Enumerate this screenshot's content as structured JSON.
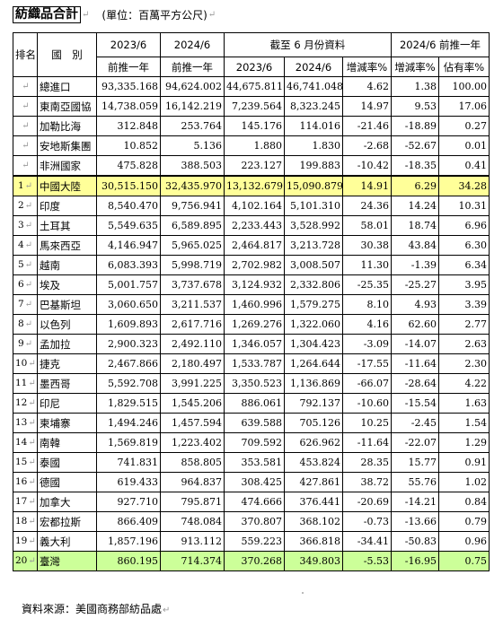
{
  "title": "紡織品合計",
  "unit": "(單位：百萬平方公尺)",
  "header": {
    "rank": "排名",
    "country": "國　別",
    "col_2023": "2023/6",
    "col_2024": "2024/6",
    "prev_year": "前推一年",
    "ytd_group": "截至 6 月份資料",
    "ytd_2023": "2023/6",
    "ytd_2024": "2024/6",
    "ytd_change": "增減率%",
    "prior_group": "2024/6 前推一年",
    "prior_change": "增減率%",
    "prior_share": "佔有率%"
  },
  "rows": [
    {
      "rank": "",
      "name": "總進口",
      "v1": "93,335.168",
      "v2": "94,624.002",
      "v3": "44,675.811",
      "v4": "46,741.048",
      "v5": "4.62",
      "v6": "1.38",
      "v7": "100.00"
    },
    {
      "rank": "",
      "name": "東南亞國協",
      "v1": "14,738.059",
      "v2": "16,142.219",
      "v3": "7,239.564",
      "v4": "8,323.245",
      "v5": "14.97",
      "v6": "9.53",
      "v7": "17.06"
    },
    {
      "rank": "",
      "name": "加勒比海",
      "v1": "312.848",
      "v2": "253.764",
      "v3": "145.176",
      "v4": "114.016",
      "v5": "-21.46",
      "v6": "-18.89",
      "v7": "0.27"
    },
    {
      "rank": "",
      "name": "安地斯集團",
      "v1": "10.852",
      "v2": "5.136",
      "v3": "1.880",
      "v4": "1.830",
      "v5": "-2.68",
      "v6": "-52.67",
      "v7": "0.01"
    },
    {
      "rank": "",
      "name": "非洲國家",
      "v1": "475.828",
      "v2": "388.503",
      "v3": "223.127",
      "v4": "199.883",
      "v5": "-10.42",
      "v6": "-18.35",
      "v7": "0.41"
    },
    {
      "rank": "1",
      "name": "中國大陸",
      "v1": "30,515.150",
      "v2": "32,435.970",
      "v3": "13,132.679",
      "v4": "15,090.879",
      "v5": "14.91",
      "v6": "6.29",
      "v7": "34.28"
    },
    {
      "rank": "2",
      "name": "印度",
      "v1": "8,540.470",
      "v2": "9,756.941",
      "v3": "4,102.164",
      "v4": "5,101.310",
      "v5": "24.36",
      "v6": "14.24",
      "v7": "10.31"
    },
    {
      "rank": "3",
      "name": "土耳其",
      "v1": "5,549.635",
      "v2": "6,589.895",
      "v3": "2,233.443",
      "v4": "3,528.992",
      "v5": "58.01",
      "v6": "18.74",
      "v7": "6.96"
    },
    {
      "rank": "4",
      "name": "馬來西亞",
      "v1": "4,146.947",
      "v2": "5,965.025",
      "v3": "2,464.817",
      "v4": "3,213.728",
      "v5": "30.38",
      "v6": "43.84",
      "v7": "6.30"
    },
    {
      "rank": "5",
      "name": "越南",
      "v1": "6,083.393",
      "v2": "5,998.719",
      "v3": "2,702.982",
      "v4": "3,008.507",
      "v5": "11.30",
      "v6": "-1.39",
      "v7": "6.34"
    },
    {
      "rank": "6",
      "name": "埃及",
      "v1": "5,001.757",
      "v2": "3,737.678",
      "v3": "3,124.932",
      "v4": "2,332.806",
      "v5": "-25.35",
      "v6": "-25.27",
      "v7": "3.95"
    },
    {
      "rank": "7",
      "name": "巴基斯坦",
      "v1": "3,060.650",
      "v2": "3,211.537",
      "v3": "1,460.996",
      "v4": "1,579.275",
      "v5": "8.10",
      "v6": "4.93",
      "v7": "3.39"
    },
    {
      "rank": "8",
      "name": "以色列",
      "v1": "1,609.893",
      "v2": "2,617.716",
      "v3": "1,269.276",
      "v4": "1,322.060",
      "v5": "4.16",
      "v6": "62.60",
      "v7": "2.77"
    },
    {
      "rank": "9",
      "name": "孟加拉",
      "v1": "2,900.323",
      "v2": "2,492.110",
      "v3": "1,346.057",
      "v4": "1,304.423",
      "v5": "-3.09",
      "v6": "-14.07",
      "v7": "2.63"
    },
    {
      "rank": "10",
      "name": "捷克",
      "v1": "2,467.866",
      "v2": "2,180.497",
      "v3": "1,533.787",
      "v4": "1,264.644",
      "v5": "-17.55",
      "v6": "-11.64",
      "v7": "2.30"
    },
    {
      "rank": "11",
      "name": "墨西哥",
      "v1": "5,592.708",
      "v2": "3,991.225",
      "v3": "3,350.523",
      "v4": "1,136.869",
      "v5": "-66.07",
      "v6": "-28.64",
      "v7": "4.22"
    },
    {
      "rank": "12",
      "name": "印尼",
      "v1": "1,829.515",
      "v2": "1,545.206",
      "v3": "886.061",
      "v4": "792.137",
      "v5": "-10.60",
      "v6": "-15.54",
      "v7": "1.63"
    },
    {
      "rank": "13",
      "name": "柬埔寨",
      "v1": "1,494.246",
      "v2": "1,457.594",
      "v3": "639.588",
      "v4": "705.126",
      "v5": "10.25",
      "v6": "-2.45",
      "v7": "1.54"
    },
    {
      "rank": "14",
      "name": "南韓",
      "v1": "1,569.819",
      "v2": "1,223.402",
      "v3": "709.592",
      "v4": "626.962",
      "v5": "-11.64",
      "v6": "-22.07",
      "v7": "1.29"
    },
    {
      "rank": "15",
      "name": "泰國",
      "v1": "741.831",
      "v2": "858.805",
      "v3": "353.581",
      "v4": "453.824",
      "v5": "28.35",
      "v6": "15.77",
      "v7": "0.91"
    },
    {
      "rank": "16",
      "name": "德國",
      "v1": "619.433",
      "v2": "964.837",
      "v3": "308.425",
      "v4": "427.861",
      "v5": "38.72",
      "v6": "55.76",
      "v7": "1.02"
    },
    {
      "rank": "17",
      "name": "加拿大",
      "v1": "927.710",
      "v2": "795.871",
      "v3": "474.666",
      "v4": "376.441",
      "v5": "-20.69",
      "v6": "-14.21",
      "v7": "0.84"
    },
    {
      "rank": "18",
      "name": "宏都拉斯",
      "v1": "866.409",
      "v2": "748.084",
      "v3": "370.807",
      "v4": "368.102",
      "v5": "-0.73",
      "v6": "-13.66",
      "v7": "0.79"
    },
    {
      "rank": "19",
      "name": "義大利",
      "v1": "1,857.196",
      "v2": "913.112",
      "v3": "559.223",
      "v4": "366.818",
      "v5": "-34.41",
      "v6": "-50.83",
      "v7": "0.96"
    },
    {
      "rank": "20",
      "name": "臺灣",
      "v1": "860.195",
      "v2": "714.374",
      "v3": "370.268",
      "v4": "349.803",
      "v5": "-5.53",
      "v6": "-16.95",
      "v7": "0.75"
    }
  ],
  "footer": "資料來源：美國商務部紡品處"
}
